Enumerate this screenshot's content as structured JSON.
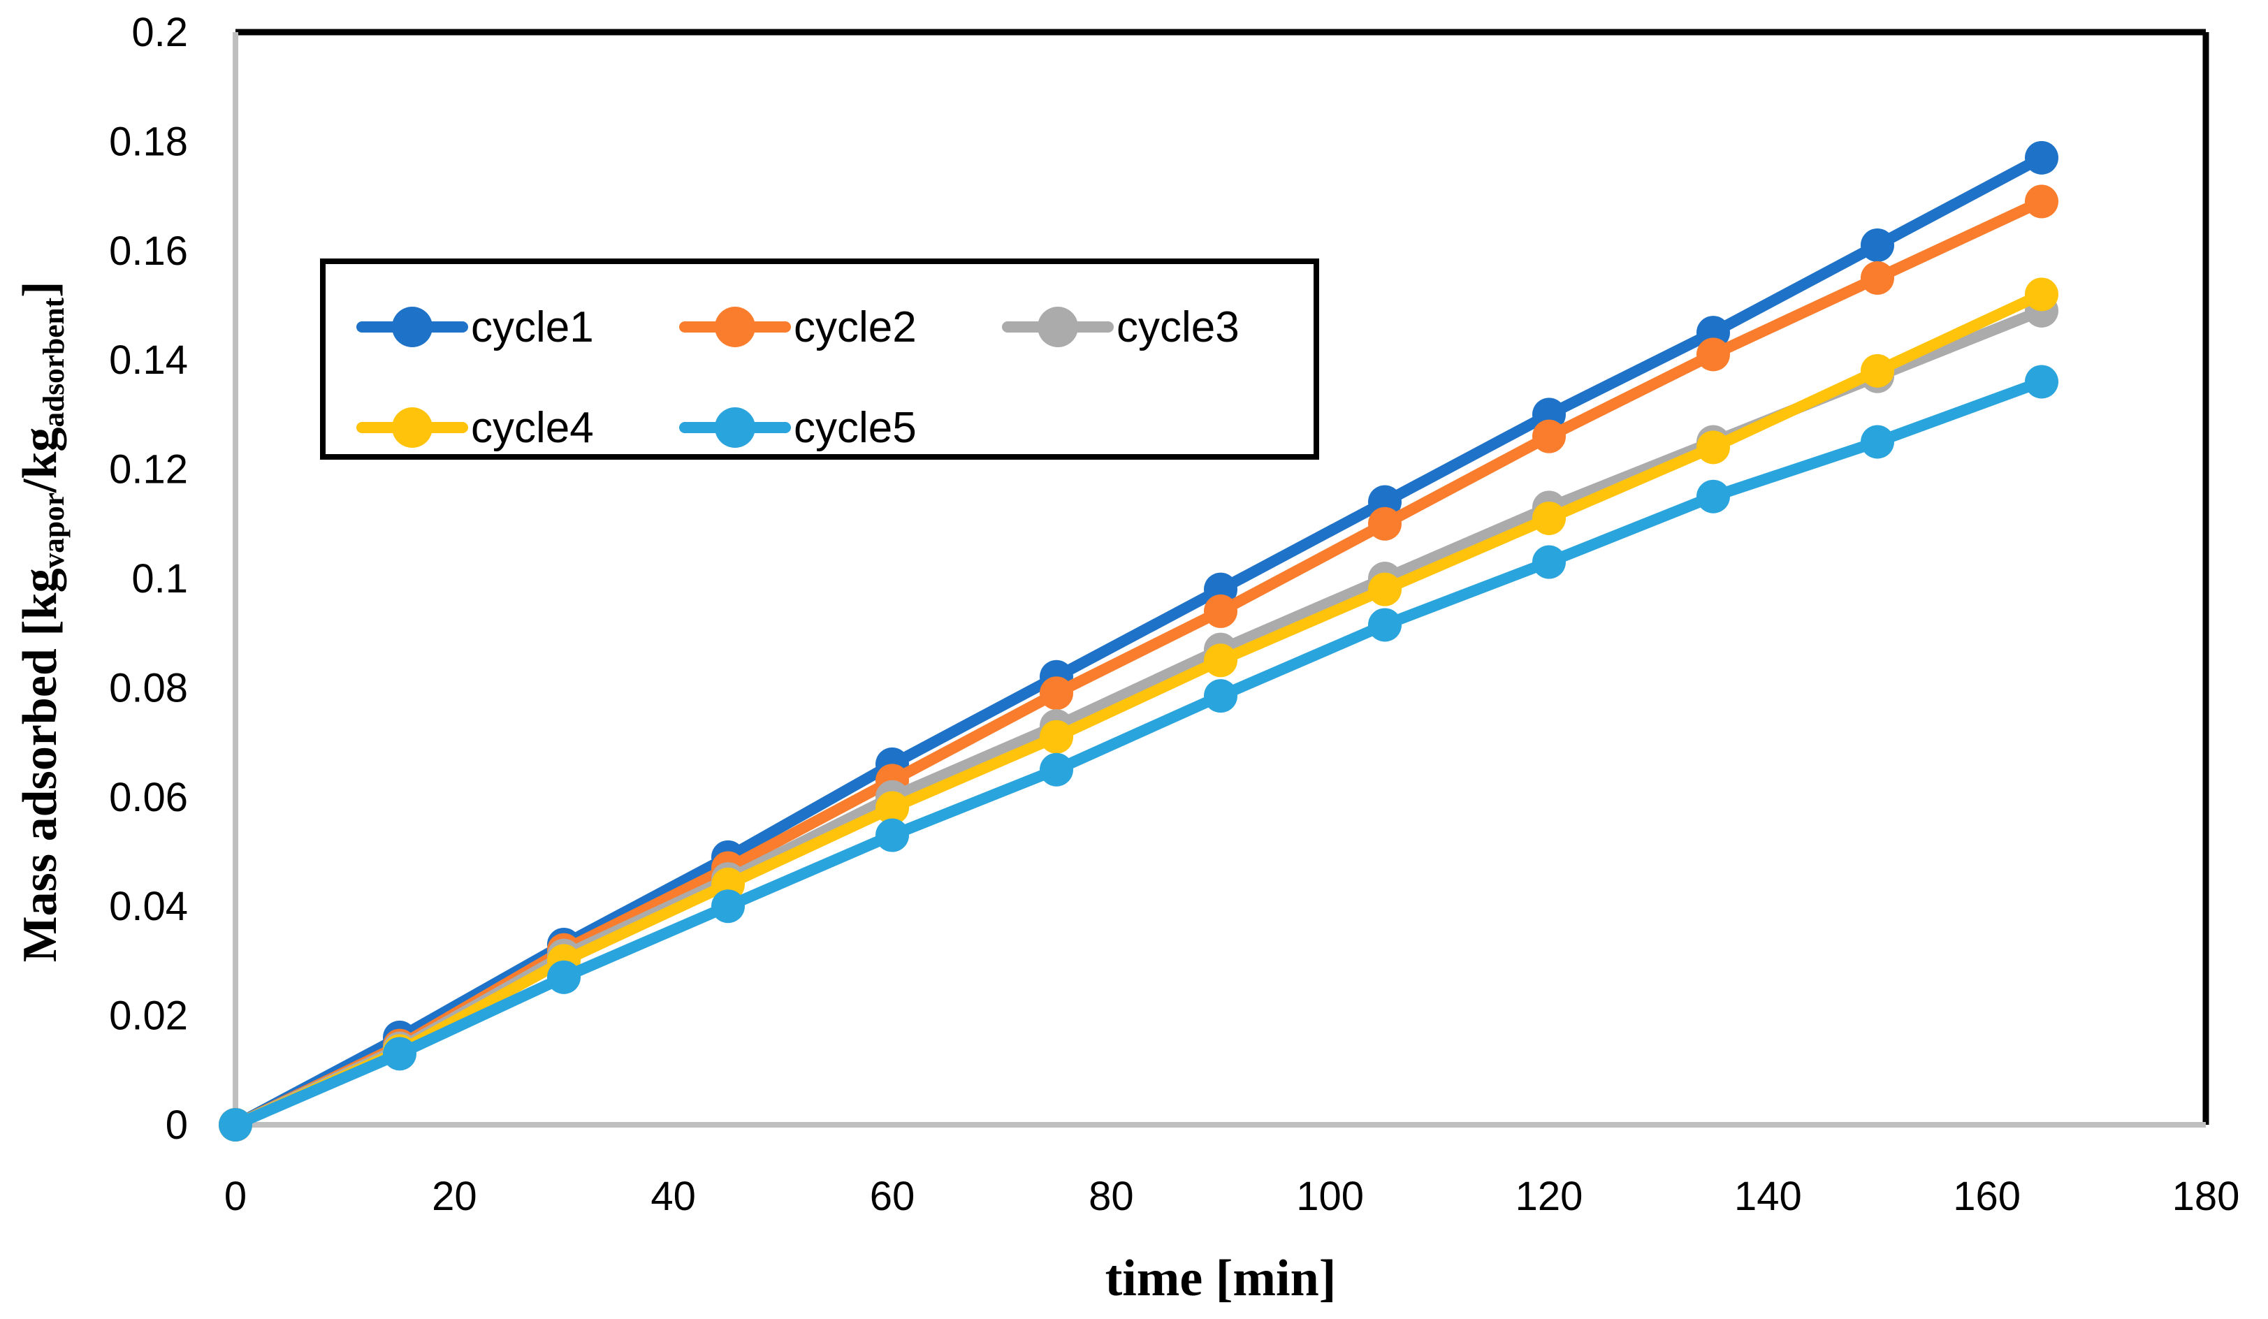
{
  "chart_data": {
    "type": "line",
    "title": "",
    "xlabel": "time [min]",
    "ylabel_parts": {
      "p1": "Mass adsorbed [kg",
      "s1": "vapor",
      "p2": "/kg",
      "s2": "adsorbent",
      "p3": "]"
    },
    "xlim": [
      0,
      180
    ],
    "ylim": [
      0,
      0.2
    ],
    "grid": false,
    "legend_position": "inside top-left, boxed, 2 rows",
    "xticks": [
      0,
      20,
      40,
      60,
      80,
      100,
      120,
      140,
      160,
      180
    ],
    "yticks": [
      "0",
      "0.02",
      "0.04",
      "0.06",
      "0.08",
      "0.1",
      "0.12",
      "0.14",
      "0.16",
      "0.18",
      "0.2"
    ],
    "x": [
      0,
      15,
      30,
      45,
      60,
      75,
      90,
      105,
      120,
      135,
      150,
      165
    ],
    "series": [
      {
        "name": "cycle1",
        "color": "#1E73C8",
        "values": [
          0,
          0.016,
          0.033,
          0.049,
          0.066,
          0.082,
          0.098,
          0.114,
          0.13,
          0.145,
          0.161,
          0.177
        ]
      },
      {
        "name": "cycle2",
        "color": "#F97D2C",
        "values": [
          0,
          0.0145,
          0.032,
          0.047,
          0.063,
          0.079,
          0.094,
          0.11,
          0.126,
          0.141,
          0.155,
          0.169
        ]
      },
      {
        "name": "cycle3",
        "color": "#ABABAB",
        "values": [
          0,
          0.014,
          0.031,
          0.045,
          0.06,
          0.073,
          0.087,
          0.1,
          0.113,
          0.125,
          0.137,
          0.149
        ]
      },
      {
        "name": "cycle4",
        "color": "#FFC30B",
        "values": [
          0,
          0.0135,
          0.03,
          0.044,
          0.058,
          0.071,
          0.085,
          0.098,
          0.111,
          0.124,
          0.138,
          0.152
        ]
      },
      {
        "name": "cycle5",
        "color": "#2AA4DD",
        "values": [
          0,
          0.013,
          0.027,
          0.04,
          0.053,
          0.065,
          0.0785,
          0.0915,
          0.103,
          0.115,
          0.125,
          0.136
        ]
      }
    ],
    "axis_color": "#BFBFBF",
    "border_color": "#000000",
    "text_color": "#000000"
  }
}
